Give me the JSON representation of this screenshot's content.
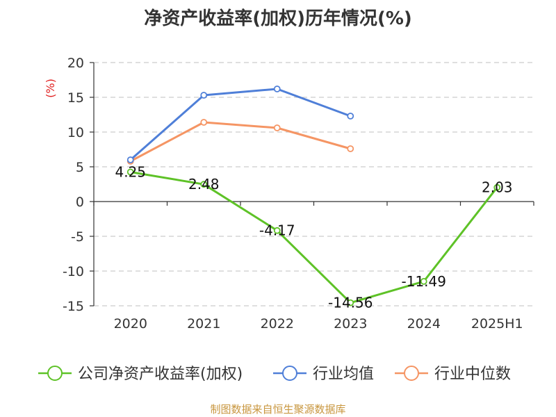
{
  "chart_data": {
    "type": "line",
    "title": "净资产收益率(加权)历年情况(%)",
    "ylabel": "(%)",
    "xlabel": "",
    "categories": [
      "2020",
      "2021",
      "2022",
      "2023",
      "2024",
      "2025H1"
    ],
    "ylim": [
      -15,
      20
    ],
    "yticks": [
      20,
      15,
      10,
      5,
      0,
      -5,
      -10,
      -15
    ],
    "grid": true,
    "legend_position": "bottom",
    "series": [
      {
        "name": "公司净资产收益率(加权)",
        "color": "#5ec227",
        "values": [
          4.25,
          2.48,
          -4.17,
          -14.56,
          -11.49,
          2.03
        ],
        "labels": [
          "4.25",
          "2.48",
          "-4.17",
          "-14.56",
          "-11.49",
          "2.03"
        ]
      },
      {
        "name": "行业均值",
        "color": "#4f7fd8",
        "values": [
          6.0,
          15.3,
          16.2,
          12.3,
          null,
          null
        ]
      },
      {
        "name": "行业中位数",
        "color": "#f59564",
        "values": [
          5.8,
          11.4,
          10.6,
          7.6,
          null,
          null
        ]
      }
    ]
  },
  "source": "制图数据来自恒生聚源数据库",
  "colors": {
    "ylabel": "#e02020",
    "grid": "#cccccc",
    "axis": "#333333"
  }
}
